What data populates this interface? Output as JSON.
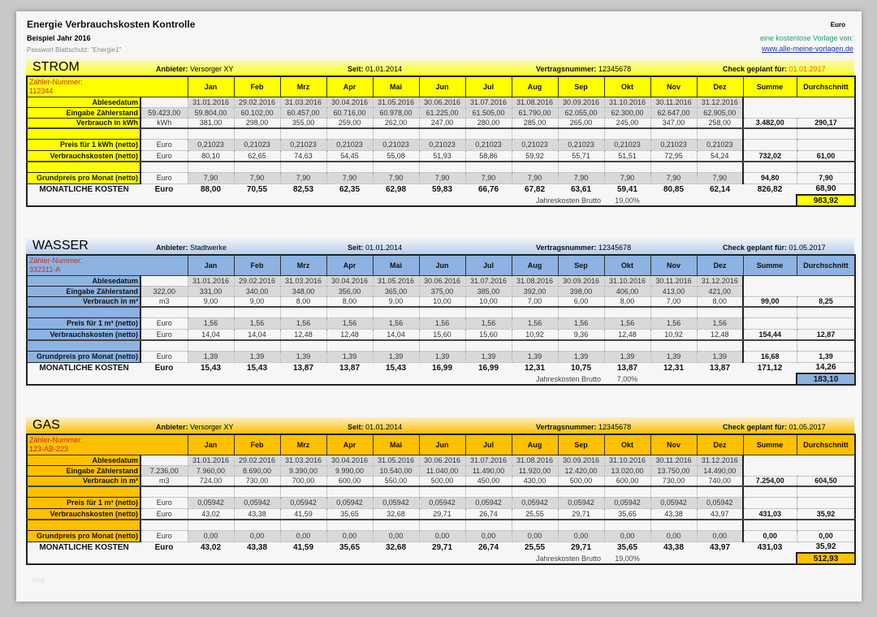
{
  "header": {
    "title": "Energie Verbrauchskosten Kontrolle",
    "subtitle": "Beispiel Jahr 2016",
    "password_note": "Passwort Blattschutz: \"Energie1\"",
    "currency": "Euro",
    "free_note": "eine kostenlose Vorlage von:",
    "link": "www.alle-meine-vorlagen.de",
    "watermark": "blog"
  },
  "labels": {
    "provider": "Anbieter:",
    "since": "Seit:",
    "contract": "Vertragsnummer:",
    "check": "Check geplant für:",
    "meter": "Zähler-Nummer:",
    "ablesedatum": "Ablesedatum",
    "eingabe": "Eingabe Zählerstand",
    "kosten": "Verbrauchskosten (netto)",
    "grund": "Grundpreis pro Monat (netto)",
    "monthly": "MONATLICHE KOSTEN",
    "euro": "Euro",
    "brutto": "Jahreskosten Brutto",
    "summe": "Summe",
    "avg": "Durchschnitt"
  },
  "months": [
    "Jan",
    "Feb",
    "Mrz",
    "Apr",
    "Mai",
    "Jun",
    "Jul",
    "Aug",
    "Sep",
    "Okt",
    "Nov",
    "Dez"
  ],
  "dates": [
    "31.01.2016",
    "29.02.2016",
    "31.03.2016",
    "30.04.2016",
    "31.05.2016",
    "30.06.2016",
    "31.07.2016",
    "31.08.2016",
    "30.09.2016",
    "31.10.2016",
    "30.11.2016",
    "31.12.2016"
  ],
  "colors": {
    "strom": "#ffff00",
    "wasser": "#8db3e2",
    "gas": "#ffc000"
  },
  "sections": [
    {
      "key": "strom",
      "title": "STROM",
      "provider": "Versorger XY",
      "since": "01.01.2014",
      "contract": "12345678",
      "check": "01.01.2017",
      "meter": "112344",
      "verbrauch_label": "Verbrauch in kWh",
      "preis_label": "Preis für 1 kWh (netto)",
      "unit": "kWh",
      "start": "59.423,00",
      "readings": [
        "59.804,00",
        "60.102,00",
        "60.457,00",
        "60.716,00",
        "60.978,00",
        "61.225,00",
        "61.505,00",
        "61.790,00",
        "62.055,00",
        "62.300,00",
        "62.647,00",
        "62.905,00"
      ],
      "consumption": [
        "381,00",
        "298,00",
        "355,00",
        "259,00",
        "262,00",
        "247,00",
        "280,00",
        "285,00",
        "265,00",
        "245,00",
        "347,00",
        "258,00"
      ],
      "consumption_sum": "3.482,00",
      "consumption_avg": "290,17",
      "price": [
        "0,21023",
        "0,21023",
        "0,21023",
        "0,21023",
        "0,21023",
        "0,21023",
        "0,21023",
        "0,21023",
        "0,21023",
        "0,21023",
        "0,21023",
        "0,21023"
      ],
      "costs": [
        "80,10",
        "62,65",
        "74,63",
        "54,45",
        "55,08",
        "51,93",
        "58,86",
        "59,92",
        "55,71",
        "51,51",
        "72,95",
        "54,24"
      ],
      "costs_sum": "732,02",
      "costs_avg": "61,00",
      "base": [
        "7,90",
        "7,90",
        "7,90",
        "7,90",
        "7,90",
        "7,90",
        "7,90",
        "7,90",
        "7,90",
        "7,90",
        "7,90",
        "7,90"
      ],
      "base_sum": "94,80",
      "base_avg": "7,90",
      "monthly": [
        "88,00",
        "70,55",
        "82,53",
        "62,35",
        "62,98",
        "59,83",
        "66,76",
        "67,82",
        "63,61",
        "59,41",
        "80,85",
        "62,14"
      ],
      "monthly_sum": "826,82",
      "monthly_avg": "68,90",
      "vat": "19,00%",
      "brutto": "983,92"
    },
    {
      "key": "wasser",
      "title": "WASSER",
      "provider": "Stadtwerke",
      "since": "01.01.2014",
      "contract": "12345678",
      "check": "01.05.2017",
      "meter": "332311-A",
      "verbrauch_label": "Verbrauch in m³",
      "preis_label": "Preis für 1 m³ (netto)",
      "unit": "m3",
      "start": "322,00",
      "readings": [
        "331,00",
        "340,00",
        "348,00",
        "356,00",
        "365,00",
        "375,00",
        "385,00",
        "392,00",
        "398,00",
        "406,00",
        "413,00",
        "421,00"
      ],
      "consumption": [
        "9,00",
        "9,00",
        "8,00",
        "8,00",
        "9,00",
        "10,00",
        "10,00",
        "7,00",
        "6,00",
        "8,00",
        "7,00",
        "8,00"
      ],
      "consumption_sum": "99,00",
      "consumption_avg": "8,25",
      "price": [
        "1,56",
        "1,56",
        "1,56",
        "1,56",
        "1,56",
        "1,56",
        "1,56",
        "1,56",
        "1,56",
        "1,56",
        "1,56",
        "1,56"
      ],
      "costs": [
        "14,04",
        "14,04",
        "12,48",
        "12,48",
        "14,04",
        "15,60",
        "15,60",
        "10,92",
        "9,36",
        "12,48",
        "10,92",
        "12,48"
      ],
      "costs_sum": "154,44",
      "costs_avg": "12,87",
      "base": [
        "1,39",
        "1,39",
        "1,39",
        "1,39",
        "1,39",
        "1,39",
        "1,39",
        "1,39",
        "1,39",
        "1,39",
        "1,39",
        "1,39"
      ],
      "base_sum": "16,68",
      "base_avg": "1,39",
      "monthly": [
        "15,43",
        "15,43",
        "13,87",
        "13,87",
        "15,43",
        "16,99",
        "16,99",
        "12,31",
        "10,75",
        "13,87",
        "12,31",
        "13,87"
      ],
      "monthly_sum": "171,12",
      "monthly_avg": "14,26",
      "vat": "7,00%",
      "brutto": "183,10"
    },
    {
      "key": "gas",
      "title": "GAS",
      "provider": "Versorger XY",
      "since": "01.01.2014",
      "contract": "12345678",
      "check": "01.05.2017",
      "meter": "123-AB-223",
      "verbrauch_label": "Verbrauch in m³",
      "preis_label": "Preis für 1 m³ (netto)",
      "unit": "m3",
      "start": "7.236,00",
      "readings": [
        "7.960,00",
        "8.690,00",
        "9.390,00",
        "9.990,00",
        "10.540,00",
        "11.040,00",
        "11.490,00",
        "11.920,00",
        "12.420,00",
        "13.020,00",
        "13.750,00",
        "14.490,00"
      ],
      "consumption": [
        "724,00",
        "730,00",
        "700,00",
        "600,00",
        "550,00",
        "500,00",
        "450,00",
        "430,00",
        "500,00",
        "600,00",
        "730,00",
        "740,00"
      ],
      "consumption_sum": "7.254,00",
      "consumption_avg": "604,50",
      "price": [
        "0,05942",
        "0,05942",
        "0,05942",
        "0,05942",
        "0,05942",
        "0,05942",
        "0,05942",
        "0,05942",
        "0,05942",
        "0,05942",
        "0,05942",
        "0,05942"
      ],
      "costs": [
        "43,02",
        "43,38",
        "41,59",
        "35,65",
        "32,68",
        "29,71",
        "26,74",
        "25,55",
        "29,71",
        "35,65",
        "43,38",
        "43,97"
      ],
      "costs_sum": "431,03",
      "costs_avg": "35,92",
      "base": [
        "0,00",
        "0,00",
        "0,00",
        "0,00",
        "0,00",
        "0,00",
        "0,00",
        "0,00",
        "0,00",
        "0,00",
        "0,00",
        "0,00"
      ],
      "base_sum": "0,00",
      "base_avg": "0,00",
      "monthly": [
        "43,02",
        "43,38",
        "41,59",
        "35,65",
        "32,68",
        "29,71",
        "26,74",
        "25,55",
        "29,71",
        "35,65",
        "43,38",
        "43,97"
      ],
      "monthly_sum": "431,03",
      "monthly_avg": "35,92",
      "vat": "19,00%",
      "brutto": "512,93"
    }
  ]
}
